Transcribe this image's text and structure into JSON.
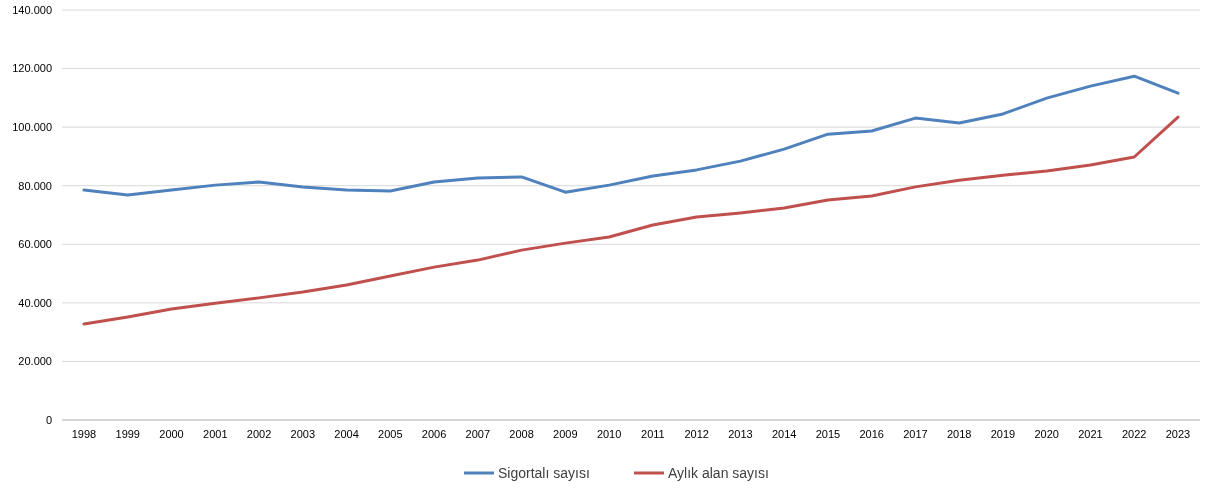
{
  "chart_data": {
    "type": "line",
    "categories": [
      "1998",
      "1999",
      "2000",
      "2001",
      "2002",
      "2003",
      "2004",
      "2005",
      "2006",
      "2007",
      "2008",
      "2009",
      "2010",
      "2011",
      "2012",
      "2013",
      "2014",
      "2015",
      "2016",
      "2017",
      "2018",
      "2019",
      "2020",
      "2021",
      "2022",
      "2023"
    ],
    "series": [
      {
        "name": "Sigortalı sayısı",
        "color": "#4f81bd",
        "values": [
          78500,
          76800,
          78500,
          80200,
          81300,
          79600,
          78500,
          78200,
          81300,
          82600,
          83000,
          77800,
          80200,
          83300,
          85400,
          88400,
          92500,
          97600,
          98700,
          103100,
          101400,
          104500,
          109900,
          114000,
          117400,
          111600
        ]
      },
      {
        "name": "Aylık alan sayısı",
        "color": "#c0504d",
        "values": [
          32800,
          35200,
          37900,
          39900,
          41700,
          43700,
          46100,
          49200,
          52200,
          54600,
          58000,
          60400,
          62500,
          66600,
          69300,
          70700,
          72400,
          75100,
          76500,
          79600,
          81900,
          83600,
          85000,
          87100,
          89800,
          103400
        ]
      }
    ],
    "ylim": [
      0,
      140000
    ],
    "yticks": [
      0,
      {
        "value": 20000,
        "label": "20.000"
      },
      {
        "value": 40000,
        "label": "40.000"
      },
      {
        "value": 60000,
        "label": "60.000"
      },
      {
        "value": 80000,
        "label": "80.000"
      },
      {
        "value": 100000,
        "label": "100.000"
      },
      {
        "value": 120000,
        "label": "120.000"
      },
      {
        "value": 140000,
        "label": "140.000"
      }
    ],
    "grid": "y",
    "legend": "bottom",
    "marker": "none",
    "line_style": "solid"
  }
}
